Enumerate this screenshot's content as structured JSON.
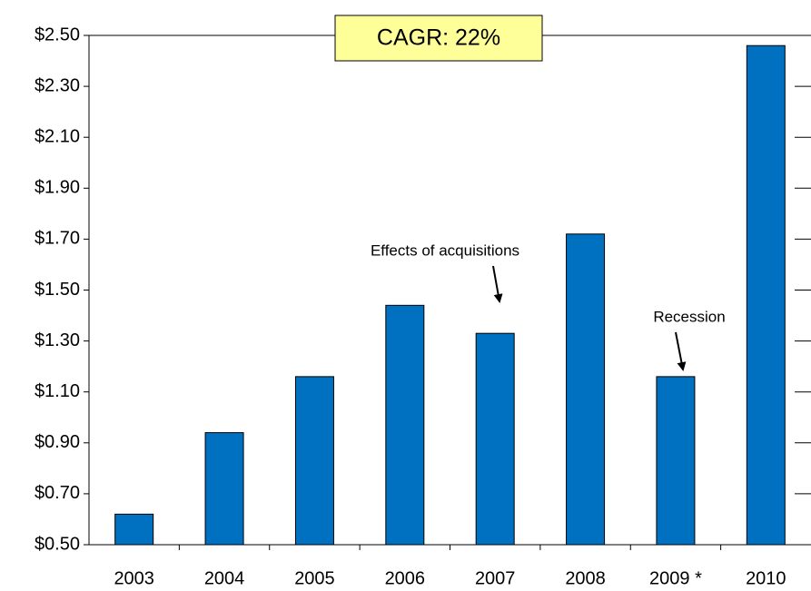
{
  "chart_data": {
    "type": "bar",
    "categories": [
      "2003",
      "2004",
      "2005",
      "2006",
      "2007",
      "2008",
      "2009 *",
      "2010"
    ],
    "values": [
      0.62,
      0.94,
      1.16,
      1.44,
      1.33,
      1.72,
      1.16,
      2.46
    ],
    "color": "#0070c0",
    "ylim": [
      0.5,
      2.5
    ],
    "yticks": [
      {
        "value": 0.5,
        "label": "$0.50"
      },
      {
        "value": 0.7,
        "label": "$0.70"
      },
      {
        "value": 0.9,
        "label": "$0.90"
      },
      {
        "value": 1.1,
        "label": "$1.10"
      },
      {
        "value": 1.3,
        "label": "$1.30"
      },
      {
        "value": 1.5,
        "label": "$1.50"
      },
      {
        "value": 1.7,
        "label": "$1.70"
      },
      {
        "value": 1.9,
        "label": "$1.90"
      },
      {
        "value": 2.1,
        "label": "$2.10"
      },
      {
        "value": 2.3,
        "label": "$2.30"
      },
      {
        "value": 2.5,
        "label": "$2.50"
      }
    ],
    "grid": false,
    "annotations": [
      {
        "text": "CAGR:  22%"
      },
      {
        "text": "Effects of acquisitions"
      },
      {
        "text": "Recession"
      }
    ]
  }
}
